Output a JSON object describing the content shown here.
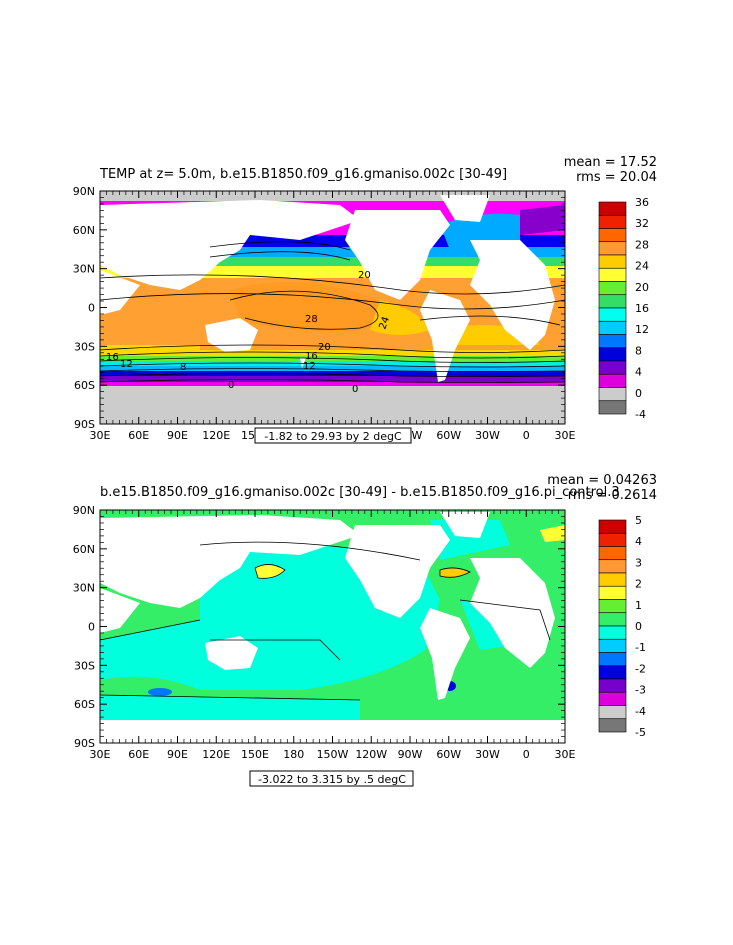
{
  "panels": [
    {
      "title": "TEMP at z=   5.0m, b.e15.B1850.f09_g16.gmaniso.002c [30-49]",
      "mean_label": "mean = 17.52",
      "rms_label": "rms = 20.04",
      "range_label": "-1.82 to 29.93 by 2 degC",
      "contour_labels": [
        "20",
        "28",
        "24",
        "20",
        "16",
        "12",
        "16",
        "12",
        "8",
        "0",
        "0"
      ],
      "colorbar_labels": [
        "36",
        "32",
        "28",
        "24",
        "20",
        "16",
        "12",
        "8",
        "4",
        "0",
        "-4"
      ],
      "colorbar_colors": [
        "#cc0000",
        "#ee2200",
        "#ff6600",
        "#ff9933",
        "#ffcc00",
        "#ffff33",
        "#66ee33",
        "#33dd66",
        "#00ffee",
        "#00ccff",
        "#0077ff",
        "#0000dd",
        "#7700cc",
        "#dd00dd",
        "#cccccc",
        "#777777"
      ]
    },
    {
      "title": "b.e15.B1850.f09_g16.gmaniso.002c [30-49] - b.e15.B1850.f09_g16.pi_control.3",
      "mean_label": "mean = 0.04263",
      "rms_label": "rms = 0.2614",
      "range_label": "-3.022 to 3.315 by .5 degC",
      "colorbar_labels": [
        "5",
        "4",
        "3",
        "2",
        "1",
        "0",
        "-1",
        "-2",
        "-3",
        "-4",
        "-5"
      ],
      "colorbar_colors": [
        "#cc0000",
        "#ee2200",
        "#ff6600",
        "#ff9933",
        "#ffcc00",
        "#ffff33",
        "#66ee33",
        "#33ee66",
        "#00ffdd",
        "#00ccff",
        "#0077ff",
        "#0000dd",
        "#7700cc",
        "#dd00dd",
        "#cccccc",
        "#777777"
      ]
    }
  ],
  "lat_labels": [
    "90N",
    "60N",
    "30N",
    "0",
    "30S",
    "60S",
    "90S"
  ],
  "lon_labels": [
    "30E",
    "60E",
    "90E",
    "120E",
    "150E",
    "180",
    "150W",
    "120W",
    "90W",
    "60W",
    "30W",
    "0",
    "30E"
  ]
}
